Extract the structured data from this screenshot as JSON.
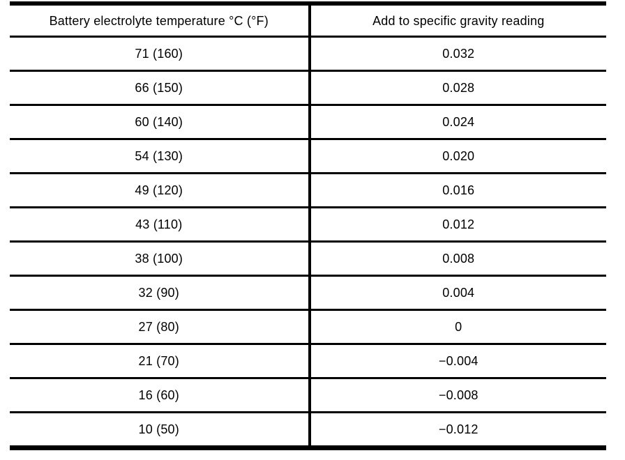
{
  "table": {
    "headers": [
      "Battery electrolyte temperature °C (°F)",
      "Add to specific gravity reading"
    ],
    "rows": [
      {
        "temp": "71 (160)",
        "add": "0.032"
      },
      {
        "temp": "66 (150)",
        "add": "0.028"
      },
      {
        "temp": "60 (140)",
        "add": "0.024"
      },
      {
        "temp": "54 (130)",
        "add": "0.020"
      },
      {
        "temp": "49 (120)",
        "add": "0.016"
      },
      {
        "temp": "43 (110)",
        "add": "0.012"
      },
      {
        "temp": "38 (100)",
        "add": "0.008"
      },
      {
        "temp": "32 (90)",
        "add": "0.004"
      },
      {
        "temp": "27 (80)",
        "add": "0"
      },
      {
        "temp": "21 (70)",
        "add": "−0.004"
      },
      {
        "temp": "16 (60)",
        "add": "−0.008"
      },
      {
        "temp": "10 (50)",
        "add": "−0.012"
      }
    ]
  }
}
